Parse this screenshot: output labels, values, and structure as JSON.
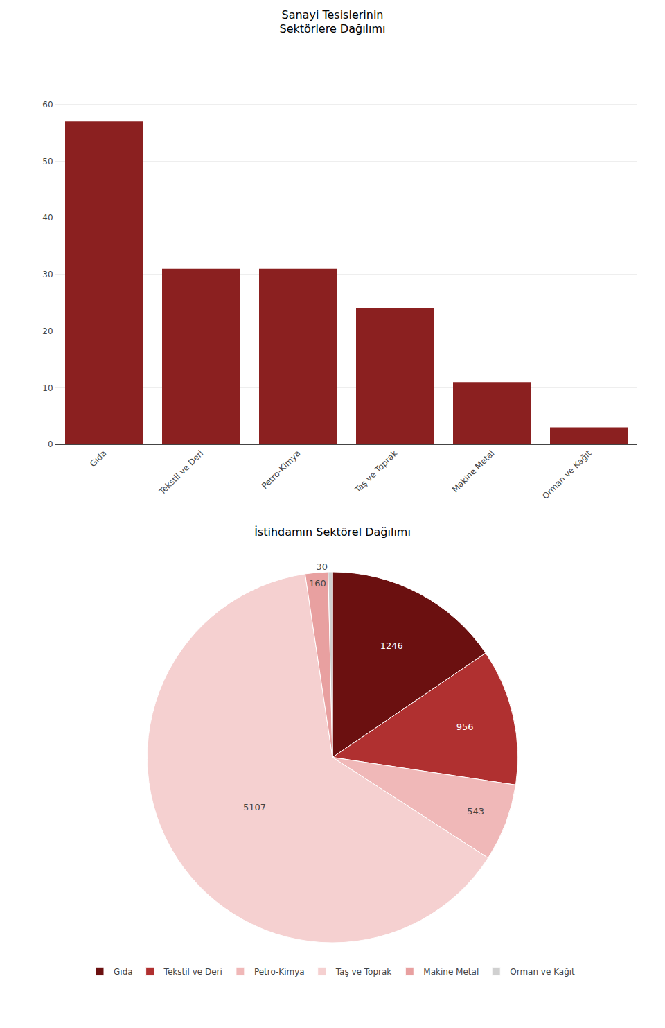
{
  "chart_data": [
    {
      "type": "bar",
      "title": "Sanayi Tesislerinin\nSektörlere Dağılımı",
      "categories": [
        "Gıda",
        "Tekstil ve Deri",
        "Petro-Kimya",
        "Taş ve Toprak",
        "Makine Metal",
        "Orman ve Kağıt"
      ],
      "values": [
        57,
        31,
        31,
        24,
        11,
        3
      ],
      "color": "#8B2020",
      "ylim": [
        0,
        65
      ],
      "yticks": [
        0,
        10,
        20,
        30,
        40,
        50,
        60
      ],
      "grid": true
    },
    {
      "type": "pie",
      "title": "İstihdamın Sektörel Dağılımı",
      "categories": [
        "Gıda",
        "Tekstil ve Deri",
        "Petro-Kimya",
        "Taş ve Toprak",
        "Makine Metal",
        "Orman ve Kağıt"
      ],
      "values": [
        1246,
        956,
        543,
        5107,
        160,
        30
      ],
      "colors": [
        "#6B1010",
        "#B03030",
        "#F0B8B8",
        "#F5D0D0",
        "#E8A0A0",
        "#D0D0D0"
      ],
      "data_labels": true,
      "legend": "bottom"
    }
  ]
}
